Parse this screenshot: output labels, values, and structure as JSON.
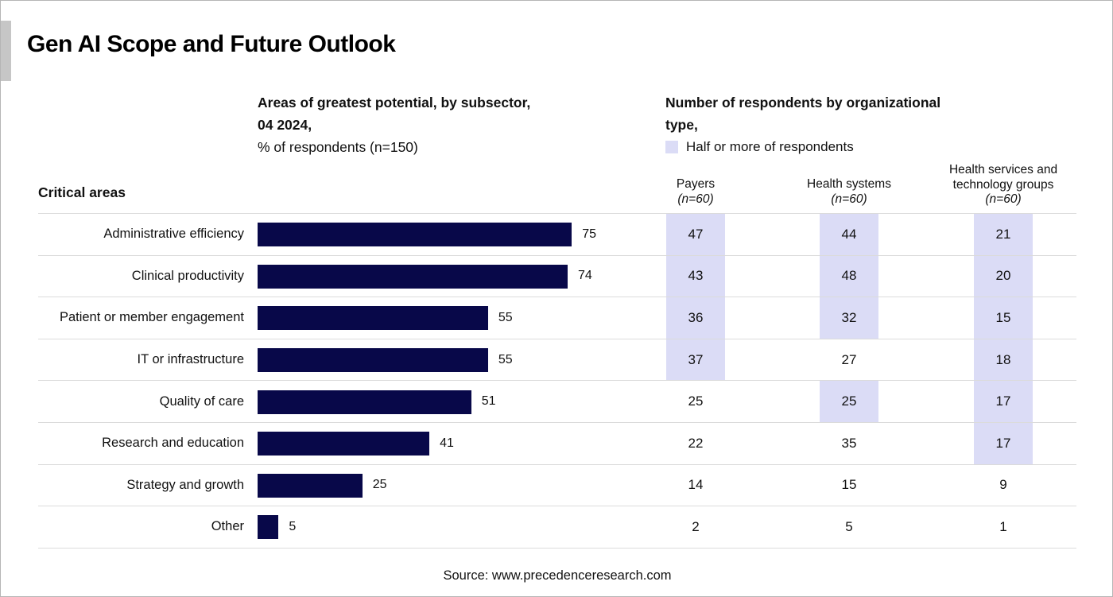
{
  "page": {
    "title": "Gen AI Scope and Future Outlook",
    "source": "Source: www.precedenceresearch.com"
  },
  "colors": {
    "bar": "#080849",
    "highlight": "#DBDCF6",
    "separator": "#DBDBDB",
    "scroll_strip": "#C6C6C6"
  },
  "left_header": {
    "line1": "Areas of greatest potential, by subsector,",
    "line2": "04 2024,",
    "line3": "% of respondents (n=150)"
  },
  "right_header": {
    "line1": "Number of respondents by organizational",
    "line2": "type,",
    "legend_label": "Half or more of respondents"
  },
  "row_axis_label": "Critical areas",
  "columns": [
    {
      "name": "Payers",
      "n": "(n=60)"
    },
    {
      "name": "Health systems",
      "n": "(n=60)"
    },
    {
      "name": "Health services and technology groups",
      "n": "(n=60)"
    }
  ],
  "rows": [
    {
      "label": "Administrative efficiency",
      "pct": 75,
      "cells": [
        {
          "v": 47,
          "hl": true
        },
        {
          "v": 44,
          "hl": true
        },
        {
          "v": 21,
          "hl": true
        }
      ]
    },
    {
      "label": "Clinical productivity",
      "pct": 74,
      "cells": [
        {
          "v": 43,
          "hl": true
        },
        {
          "v": 48,
          "hl": true
        },
        {
          "v": 20,
          "hl": true
        }
      ]
    },
    {
      "label": "Patient or member engagement",
      "pct": 55,
      "cells": [
        {
          "v": 36,
          "hl": true
        },
        {
          "v": 32,
          "hl": true
        },
        {
          "v": 15,
          "hl": true
        }
      ]
    },
    {
      "label": "IT or infrastructure",
      "pct": 55,
      "cells": [
        {
          "v": 37,
          "hl": true
        },
        {
          "v": 27,
          "hl": false
        },
        {
          "v": 18,
          "hl": true
        }
      ]
    },
    {
      "label": "Quality of care",
      "pct": 51,
      "cells": [
        {
          "v": 25,
          "hl": false
        },
        {
          "v": 25,
          "hl": true
        },
        {
          "v": 17,
          "hl": true
        }
      ]
    },
    {
      "label": "Research and education",
      "pct": 41,
      "cells": [
        {
          "v": 22,
          "hl": false
        },
        {
          "v": 35,
          "hl": false
        },
        {
          "v": 17,
          "hl": true
        }
      ]
    },
    {
      "label": "Strategy and growth",
      "pct": 25,
      "cells": [
        {
          "v": 14,
          "hl": false
        },
        {
          "v": 15,
          "hl": false
        },
        {
          "v": 9,
          "hl": false
        }
      ]
    },
    {
      "label": "Other",
      "pct": 5,
      "cells": [
        {
          "v": 2,
          "hl": false
        },
        {
          "v": 5,
          "hl": false
        },
        {
          "v": 1,
          "hl": false
        }
      ]
    }
  ],
  "chart_data": {
    "type": "bar",
    "orientation": "horizontal",
    "title": "Gen AI Scope and Future Outlook",
    "subtitle": "Areas of greatest potential, by subsector, 04 2024, % of respondents (n=150)",
    "categories": [
      "Administrative efficiency",
      "Clinical productivity",
      "Patient or member engagement",
      "IT or infrastructure",
      "Quality of care",
      "Research and education",
      "Strategy and growth",
      "Other"
    ],
    "values": [
      75,
      74,
      55,
      55,
      51,
      41,
      25,
      5
    ],
    "xlabel": "% of respondents (n=150)",
    "ylabel": "Critical areas",
    "xlim": [
      0,
      80
    ],
    "grid": false,
    "legend": [
      "Half or more of respondents"
    ],
    "legend_position": "top-right",
    "series": [
      {
        "name": "% of respondents (n=150)",
        "values": [
          75,
          74,
          55,
          55,
          51,
          41,
          25,
          5
        ]
      },
      {
        "name": "Payers (n=60)",
        "values": [
          47,
          43,
          36,
          37,
          25,
          22,
          14,
          2
        ]
      },
      {
        "name": "Health systems (n=60)",
        "values": [
          44,
          48,
          32,
          27,
          25,
          35,
          15,
          5
        ]
      },
      {
        "name": "Health services and technology groups (n=60)",
        "values": [
          21,
          20,
          15,
          18,
          17,
          17,
          9,
          1
        ]
      }
    ],
    "highlight_rule": "Half or more of respondents",
    "highlighted_cells": {
      "Payers": [
        true,
        true,
        true,
        true,
        false,
        false,
        false,
        false
      ],
      "Health systems": [
        true,
        true,
        true,
        false,
        true,
        false,
        false,
        false
      ],
      "Health services and technology groups": [
        true,
        true,
        true,
        true,
        true,
        true,
        false,
        false
      ]
    }
  }
}
